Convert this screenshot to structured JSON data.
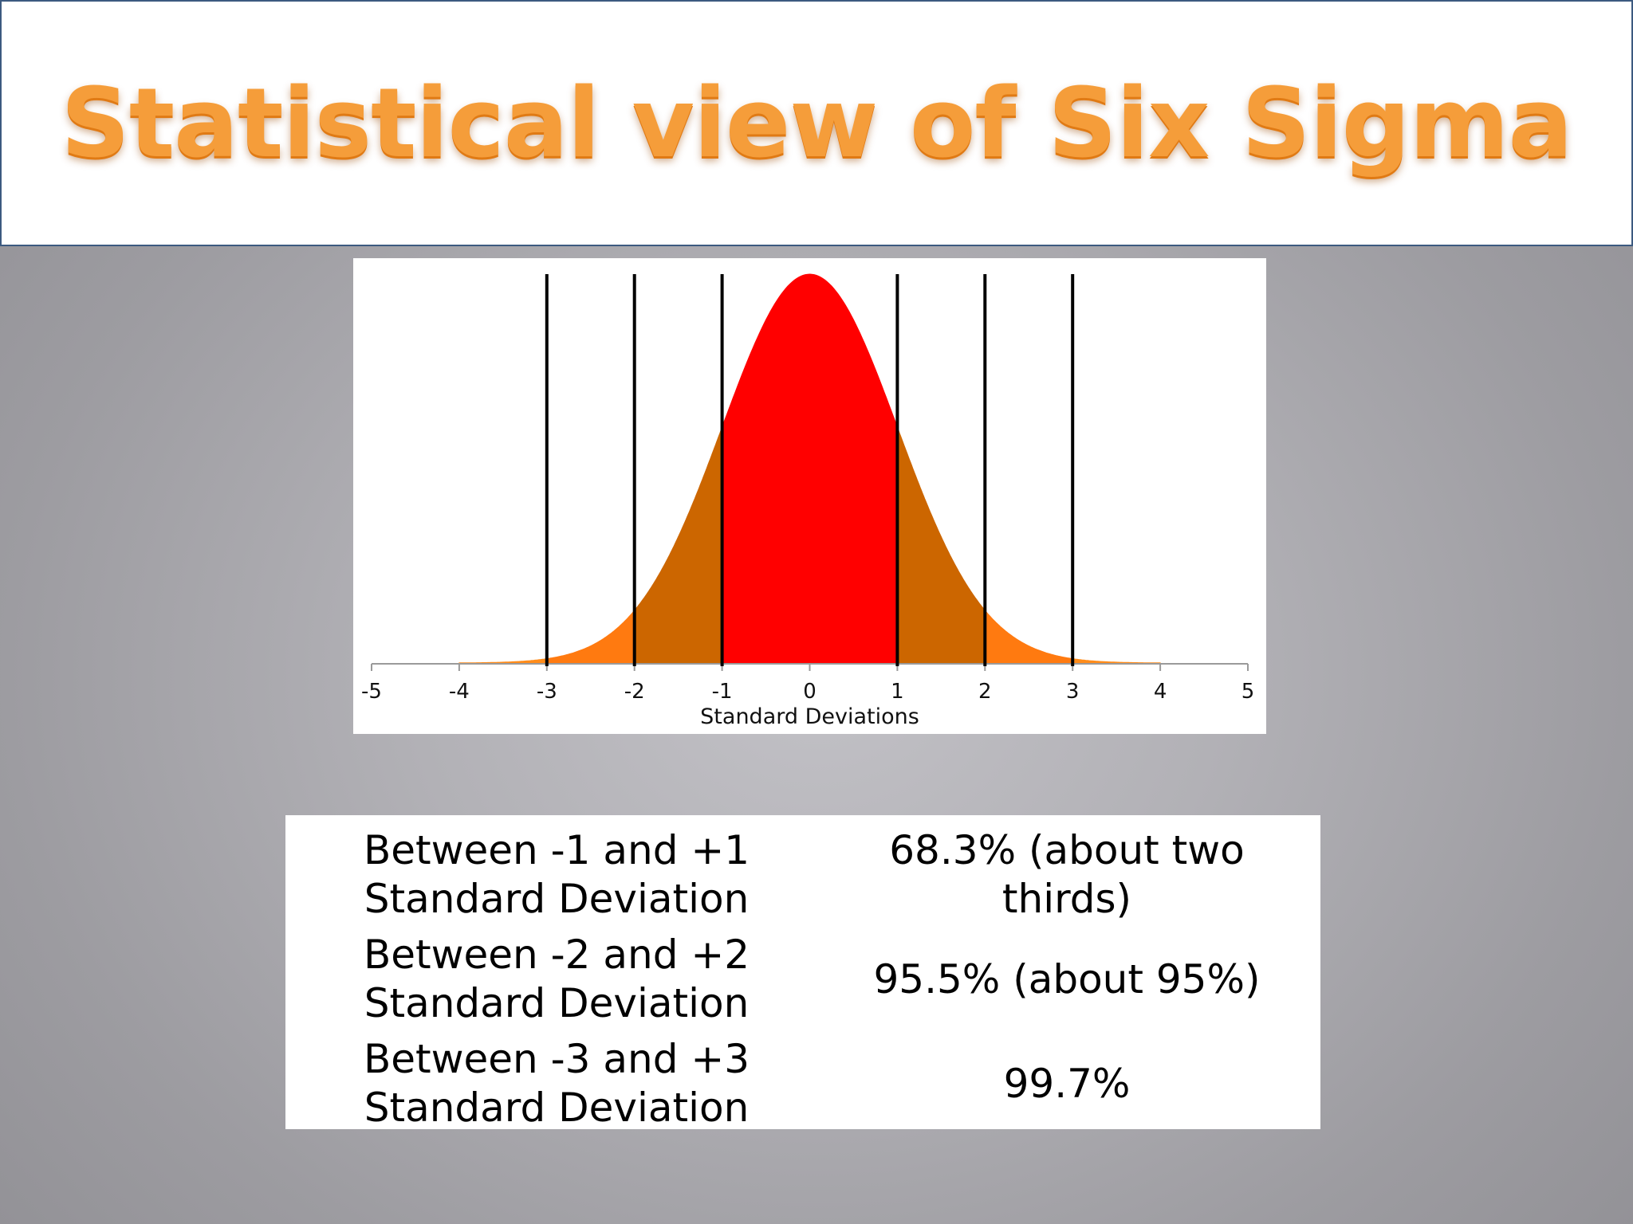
{
  "slide": {
    "title": "Statistical view of Six Sigma"
  },
  "colors": {
    "title_fill": "#f59d3a",
    "band_1sd": "#ff0000",
    "band_2sd": "#cc6600",
    "band_3sd": "#ff7a10",
    "tail": "#ff8c1a",
    "boundary_line": "#000000"
  },
  "chart_data": {
    "type": "area",
    "curve": "standard normal density",
    "xlabel": "Standard Deviations",
    "xlim": [
      -5,
      5
    ],
    "x_ticks": [
      "-5",
      "-4",
      "-3",
      "-2",
      "-1",
      "0",
      "1",
      "2",
      "3",
      "4",
      "5"
    ],
    "boundary_lines_at": [
      -3,
      -2,
      -1,
      1,
      2,
      3
    ],
    "bands": [
      {
        "from": -1,
        "to": 1,
        "color": "#ff0000"
      },
      {
        "from": -2,
        "to": -1,
        "color": "#cc6600"
      },
      {
        "from": 1,
        "to": 2,
        "color": "#cc6600"
      },
      {
        "from": -3,
        "to": -2,
        "color": "#ff7a10"
      },
      {
        "from": 2,
        "to": 3,
        "color": "#ff7a10"
      },
      {
        "from": -4,
        "to": -3,
        "color": "#ff8c1a"
      },
      {
        "from": 3,
        "to": 4,
        "color": "#ff8c1a"
      }
    ],
    "grid": false,
    "legend": "none"
  },
  "table": {
    "rows": [
      {
        "range": "Between -1 and +1 Standard Deviation",
        "percent": "68.3% (about two thirds)"
      },
      {
        "range": "Between -2 and +2 Standard Deviation",
        "percent": "95.5% (about 95%)"
      },
      {
        "range": "Between -3 and +3 Standard Deviation",
        "percent": "99.7%"
      }
    ]
  }
}
